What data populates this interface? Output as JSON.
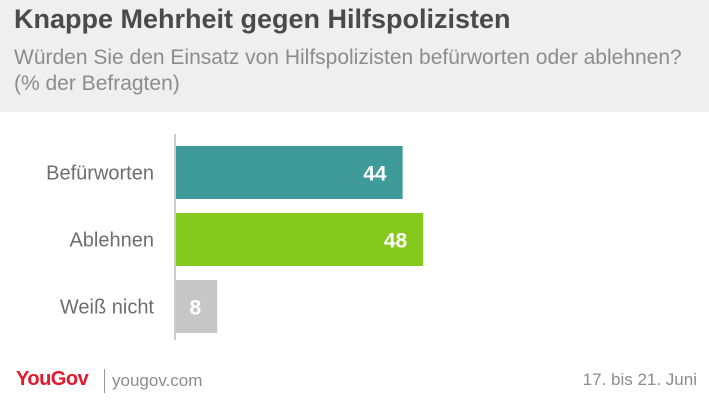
{
  "title": "Knappe Mehrheit gegen Hilfspolizisten",
  "subtitle": "Würden Sie den Einsatz von Hilfspolizisten befürworten oder ablehnen? (% der Befragten)",
  "footer": {
    "brand": "YouGov",
    "url": "yougov.com",
    "date": "17. bis 21. Juni"
  },
  "colors": {
    "accent": "#e3182d",
    "bar_1": "#3f9a9a",
    "bar_2": "#84c91c",
    "bar_3": "#c6c6c6"
  },
  "chart_data": {
    "type": "bar",
    "orientation": "horizontal",
    "title": "Knappe Mehrheit gegen Hilfspolizisten",
    "categories": [
      "Befürworten",
      "Ablehnen",
      "Weiß nicht"
    ],
    "values": [
      44,
      48,
      8
    ],
    "data_labels": [
      "44",
      "48",
      "8"
    ],
    "colors": [
      "#3f9a9a",
      "#84c91c",
      "#c6c6c6"
    ],
    "xlim": [
      0,
      100
    ],
    "grid": false,
    "legend": "none"
  }
}
